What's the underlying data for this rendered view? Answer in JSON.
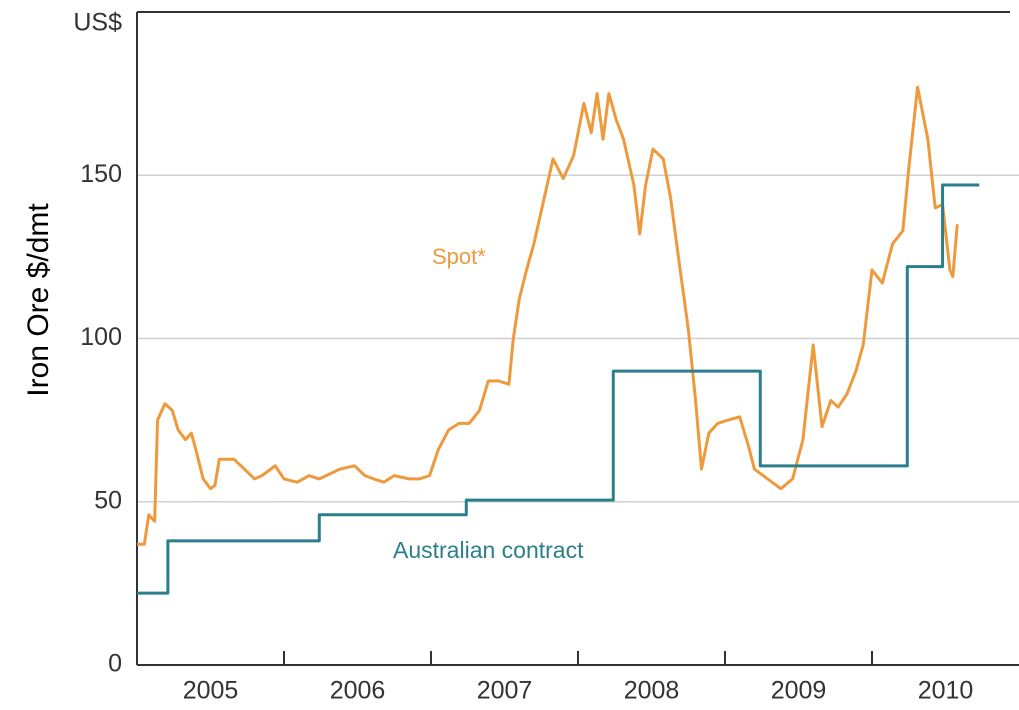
{
  "chart_data": {
    "type": "line",
    "y_label": "Iron Ore $/dmt",
    "y_unit": "US$",
    "annotations": [
      "Spot*",
      "Australian contract"
    ],
    "xlim": [
      2005,
      2011
    ],
    "xticks": [
      2006,
      2007,
      2008,
      2009,
      2010
    ],
    "xlabels": [
      {
        "value": 2005.5,
        "label": "2005"
      },
      {
        "value": 2006.5,
        "label": "2006"
      },
      {
        "value": 2007.5,
        "label": "2007"
      },
      {
        "value": 2008.5,
        "label": "2008"
      },
      {
        "value": 2009.5,
        "label": "2009"
      },
      {
        "value": 2010.5,
        "label": "2010"
      }
    ],
    "ylim": [
      0,
      200
    ],
    "yticks": [
      0,
      50,
      100,
      150
    ],
    "grid": true,
    "series": [
      {
        "name": "Spot*",
        "color": "#ee9a3c",
        "x": [
          2005.0,
          2005.05,
          2005.08,
          2005.12,
          2005.14,
          2005.19,
          2005.24,
          2005.28,
          2005.33,
          2005.37,
          2005.4,
          2005.45,
          2005.5,
          2005.53,
          2005.56,
          2005.66,
          2005.73,
          2005.8,
          2005.85,
          2005.94,
          2006.0,
          2006.09,
          2006.17,
          2006.24,
          2006.38,
          2006.48,
          2006.55,
          2006.61,
          2006.68,
          2006.75,
          2006.85,
          2006.92,
          2006.99,
          2007.05,
          2007.12,
          2007.19,
          2007.26,
          2007.33,
          2007.39,
          2007.46,
          2007.53,
          2007.56,
          2007.6,
          2007.65,
          2007.7,
          2007.77,
          2007.83,
          2007.9,
          2007.97,
          2008.04,
          2008.09,
          2008.13,
          2008.17,
          2008.21,
          2008.26,
          2008.31,
          2008.38,
          2008.42,
          2008.46,
          2008.51,
          2008.58,
          2008.63,
          2008.68,
          2008.75,
          2008.8,
          2008.84,
          2008.89,
          2008.95,
          2009.02,
          2009.1,
          2009.16,
          2009.2,
          2009.29,
          2009.38,
          2009.46,
          2009.53,
          2009.6,
          2009.66,
          2009.72,
          2009.77,
          2009.83,
          2009.89,
          2009.94,
          2010.0,
          2010.07,
          2010.14,
          2010.21,
          2010.25,
          2010.31,
          2010.38,
          2010.43,
          2010.48,
          2010.53,
          2010.55,
          2010.58
        ],
        "values": [
          37,
          37,
          46,
          44,
          75,
          80,
          78,
          72,
          69,
          71,
          66,
          57,
          54,
          55,
          63,
          63,
          60,
          57,
          58,
          61,
          57,
          56,
          58,
          57,
          60,
          61,
          58,
          57,
          56,
          58,
          57,
          57,
          58,
          66,
          72,
          74,
          74,
          78,
          87,
          87,
          86,
          100,
          112,
          121,
          129,
          143,
          155,
          149,
          156,
          172,
          163,
          175,
          161,
          175,
          167,
          161,
          147,
          132,
          147,
          158,
          155,
          143,
          126,
          103,
          81,
          60,
          71,
          74,
          75,
          76,
          67,
          60,
          57,
          54,
          57,
          69,
          98,
          73,
          81,
          79,
          83,
          90,
          98,
          121,
          117,
          129,
          133,
          152,
          177,
          161,
          140,
          141,
          121,
          119,
          135
        ]
      },
      {
        "name": "Australian contract",
        "color": "#2b7f8c",
        "x": [
          2005.0,
          2005.21,
          2005.21,
          2006.24,
          2006.24,
          2007.24,
          2007.24,
          2008.24,
          2008.24,
          2009.24,
          2009.24,
          2010.24,
          2010.24,
          2010.48,
          2010.48,
          2010.73
        ],
        "values": [
          22,
          22,
          38,
          38,
          46,
          46,
          50.5,
          50.5,
          90,
          90,
          61,
          61,
          122,
          122,
          147,
          147
        ]
      }
    ]
  }
}
